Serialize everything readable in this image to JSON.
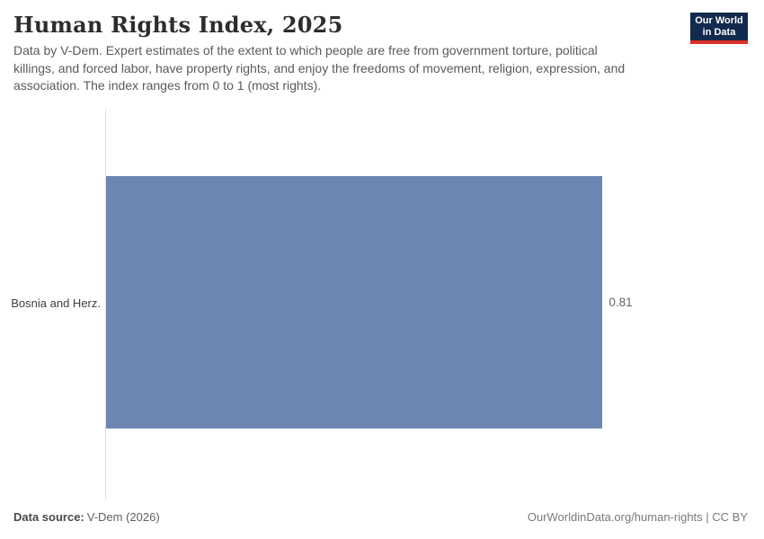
{
  "header": {
    "title": "Human Rights Index, 2025",
    "subtitle_lines": [
      "Data by V-Dem. Expert estimates of the extent to which people are free from government torture, political",
      "killings, and forced labor, have property rights, and enjoy the freedoms of movement, religion, expression, and",
      "association. The index ranges from 0 to 1 (most rights)."
    ],
    "logo": {
      "line1": "Our World",
      "line2": "in Data",
      "bg_color": "#122a4d",
      "stripe_color": "#dc3128"
    }
  },
  "chart_data": {
    "type": "bar",
    "orientation": "horizontal",
    "title": "Human Rights Index, 2025",
    "categories": [
      "Bosnia and Herz."
    ],
    "values": [
      0.81
    ],
    "value_labels": [
      "0.81"
    ],
    "xlim": [
      0,
      1
    ],
    "bar_color": "#6d87b2",
    "grid": false,
    "legend": false,
    "axis_line_color": "#dcdcdc"
  },
  "footer": {
    "source_label": "Data source:",
    "source_value": "V-Dem (2026)",
    "right_text": "OurWorldinData.org/human-rights | CC BY"
  },
  "colors": {
    "bar": "#6d87b2",
    "axis_line": "#dcdcdc",
    "logo_bg": "#122a4d",
    "logo_stripe": "#dc3128",
    "title_text": "#2d2d2d",
    "subtitle_text": "#5a5a5a"
  }
}
